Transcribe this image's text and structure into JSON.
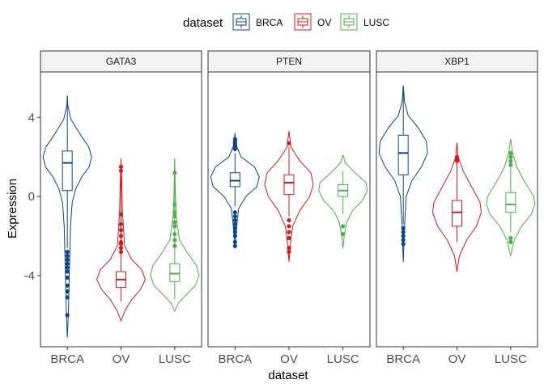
{
  "chart_data": {
    "type": "violin",
    "xlabel": "dataset",
    "ylabel": "Expression",
    "ylim": [
      -7.6,
      6.3
    ],
    "yticks": [
      4,
      0,
      -4
    ],
    "ytick_labels": [
      "4",
      "0",
      "-4"
    ],
    "categories": [
      "BRCA",
      "OV",
      "LUSC"
    ],
    "legend": {
      "title": "dataset",
      "position": "top",
      "entries": [
        "BRCA",
        "OV",
        "LUSC"
      ]
    },
    "colors": {
      "BRCA": "#0b4584",
      "OV": "#d7191c",
      "LUSC": "#4daf4a"
    },
    "grid": false,
    "panels": [
      {
        "title": "GATA3",
        "groups": [
          {
            "name": "BRCA",
            "min": -7.1,
            "max": 5.1,
            "q1": 0.3,
            "median": 1.7,
            "q3": 2.3,
            "whisker_low": -2.6,
            "whisker_high": 5.0,
            "density": [
              [
                5.1,
                0
              ],
              [
                4.6,
                0.02
              ],
              [
                3.9,
                0.15
              ],
              [
                3.2,
                0.5
              ],
              [
                2.5,
                0.88
              ],
              [
                2.0,
                1.0
              ],
              [
                1.5,
                0.9
              ],
              [
                1.0,
                0.6
              ],
              [
                0.4,
                0.35
              ],
              [
                -0.3,
                0.2
              ],
              [
                -1.5,
                0.13
              ],
              [
                -3.0,
                0.1
              ],
              [
                -4.5,
                0.07
              ],
              [
                -6.0,
                0.04
              ],
              [
                -7.1,
                0
              ]
            ],
            "outliers": [
              -2.8,
              -3.0,
              -3.2,
              -3.4,
              -3.6,
              -3.8,
              -4.1,
              -4.5,
              -4.8,
              -5.1,
              -6.0
            ]
          },
          {
            "name": "OV",
            "min": -6.3,
            "max": 1.9,
            "q1": -4.6,
            "median": -4.2,
            "q3": -3.8,
            "whisker_low": -5.3,
            "whisker_high": 1.9,
            "density": [
              [
                1.9,
                0
              ],
              [
                0.8,
                0.03
              ],
              [
                -0.8,
                0.06
              ],
              [
                -2.5,
                0.15
              ],
              [
                -3.2,
                0.45
              ],
              [
                -3.7,
                0.85
              ],
              [
                -4.2,
                1.0
              ],
              [
                -4.7,
                0.8
              ],
              [
                -5.2,
                0.45
              ],
              [
                -5.8,
                0.15
              ],
              [
                -6.3,
                0
              ]
            ],
            "outliers": [
              1.5,
              1.3,
              -0.9,
              -1.4,
              -1.7,
              -2.0,
              -2.3,
              -2.4,
              -2.6,
              -2.8
            ]
          },
          {
            "name": "LUSC",
            "min": -5.8,
            "max": 1.9,
            "q1": -4.3,
            "median": -3.9,
            "q3": -3.4,
            "whisker_low": -5.2,
            "whisker_high": 1.9,
            "density": [
              [
                1.9,
                0
              ],
              [
                0.5,
                0.02
              ],
              [
                -1.0,
                0.06
              ],
              [
                -2.2,
                0.2
              ],
              [
                -2.8,
                0.5
              ],
              [
                -3.5,
                0.9
              ],
              [
                -4.0,
                1.0
              ],
              [
                -4.5,
                0.85
              ],
              [
                -5.0,
                0.45
              ],
              [
                -5.4,
                0.15
              ],
              [
                -5.8,
                0
              ]
            ],
            "outliers": [
              1.2,
              -0.4,
              -0.8,
              -1.0,
              -1.3,
              -1.5,
              -1.9,
              -2.2,
              -2.5
            ]
          }
        ]
      },
      {
        "title": "PTEN",
        "groups": [
          {
            "name": "BRCA",
            "min": -2.6,
            "max": 3.2,
            "q1": 0.5,
            "median": 0.8,
            "q3": 1.2,
            "whisker_low": -0.5,
            "whisker_high": 2.2,
            "density": [
              [
                3.2,
                0
              ],
              [
                2.6,
                0.05
              ],
              [
                2.0,
                0.25
              ],
              [
                1.5,
                0.8
              ],
              [
                1.0,
                1.0
              ],
              [
                0.5,
                0.9
              ],
              [
                0.0,
                0.45
              ],
              [
                -0.6,
                0.15
              ],
              [
                -1.5,
                0.07
              ],
              [
                -2.6,
                0
              ]
            ],
            "outliers": [
              2.4,
              2.5,
              2.6,
              2.7,
              2.8,
              2.9,
              -0.8,
              -1.0,
              -1.2,
              -1.4,
              -1.6,
              -1.8,
              -2.0,
              -2.3,
              -2.5
            ]
          },
          {
            "name": "OV",
            "min": -3.3,
            "max": 3.3,
            "q1": 0.1,
            "median": 0.7,
            "q3": 1.1,
            "whisker_low": -1.0,
            "whisker_high": 2.5,
            "density": [
              [
                3.3,
                0
              ],
              [
                2.5,
                0.08
              ],
              [
                1.8,
                0.45
              ],
              [
                1.2,
                0.9
              ],
              [
                0.6,
                1.0
              ],
              [
                0.0,
                0.85
              ],
              [
                -0.7,
                0.45
              ],
              [
                -1.5,
                0.15
              ],
              [
                -2.5,
                0.05
              ],
              [
                -3.3,
                0
              ]
            ],
            "outliers": [
              2.7,
              -1.2,
              -1.5,
              -1.8,
              -2.1,
              -2.6,
              -2.8
            ]
          },
          {
            "name": "LUSC",
            "min": -2.6,
            "max": 2.1,
            "q1": 0.0,
            "median": 0.3,
            "q3": 0.6,
            "whisker_low": -0.9,
            "whisker_high": 1.3,
            "density": [
              [
                2.1,
                0
              ],
              [
                1.7,
                0.1
              ],
              [
                1.2,
                0.5
              ],
              [
                0.7,
                0.95
              ],
              [
                0.3,
                1.0
              ],
              [
                -0.2,
                0.8
              ],
              [
                -0.7,
                0.4
              ],
              [
                -1.3,
                0.15
              ],
              [
                -2.0,
                0.05
              ],
              [
                -2.6,
                0
              ]
            ],
            "outliers": [
              -1.5,
              -1.9
            ]
          }
        ]
      },
      {
        "title": "XBP1",
        "groups": [
          {
            "name": "BRCA",
            "min": -3.3,
            "max": 5.6,
            "q1": 1.1,
            "median": 2.2,
            "q3": 3.1,
            "whisker_low": -1.4,
            "whisker_high": 5.6,
            "density": [
              [
                5.6,
                0
              ],
              [
                4.8,
                0.05
              ],
              [
                4.1,
                0.2
              ],
              [
                3.5,
                0.6
              ],
              [
                2.8,
                0.95
              ],
              [
                2.2,
                1.0
              ],
              [
                1.5,
                0.75
              ],
              [
                0.8,
                0.35
              ],
              [
                0.0,
                0.12
              ],
              [
                -1.5,
                0.05
              ],
              [
                -3.3,
                0
              ]
            ],
            "outliers": [
              -1.6,
              -1.8,
              -2.0,
              -2.2,
              -2.4
            ]
          },
          {
            "name": "OV",
            "min": -3.8,
            "max": 2.7,
            "q1": -1.5,
            "median": -0.8,
            "q3": -0.2,
            "whisker_low": -2.3,
            "whisker_high": 1.7,
            "density": [
              [
                2.7,
                0
              ],
              [
                2.0,
                0.05
              ],
              [
                1.3,
                0.25
              ],
              [
                0.5,
                0.6
              ],
              [
                -0.3,
                0.95
              ],
              [
                -0.8,
                1.0
              ],
              [
                -1.5,
                0.8
              ],
              [
                -2.2,
                0.4
              ],
              [
                -3.0,
                0.1
              ],
              [
                -3.8,
                0
              ]
            ],
            "outliers": [
              1.8,
              1.9,
              2.0
            ]
          },
          {
            "name": "LUSC",
            "min": -3.0,
            "max": 2.9,
            "q1": -0.8,
            "median": -0.4,
            "q3": 0.2,
            "whisker_low": -1.8,
            "whisker_high": 1.5,
            "density": [
              [
                2.9,
                0
              ],
              [
                2.2,
                0.08
              ],
              [
                1.5,
                0.25
              ],
              [
                0.8,
                0.55
              ],
              [
                0.0,
                0.95
              ],
              [
                -0.4,
                1.0
              ],
              [
                -0.9,
                0.85
              ],
              [
                -1.5,
                0.45
              ],
              [
                -2.2,
                0.15
              ],
              [
                -3.0,
                0
              ]
            ],
            "outliers": [
              1.6,
              1.8,
              2.0,
              2.2,
              -2.1,
              -2.3
            ]
          }
        ]
      }
    ]
  }
}
